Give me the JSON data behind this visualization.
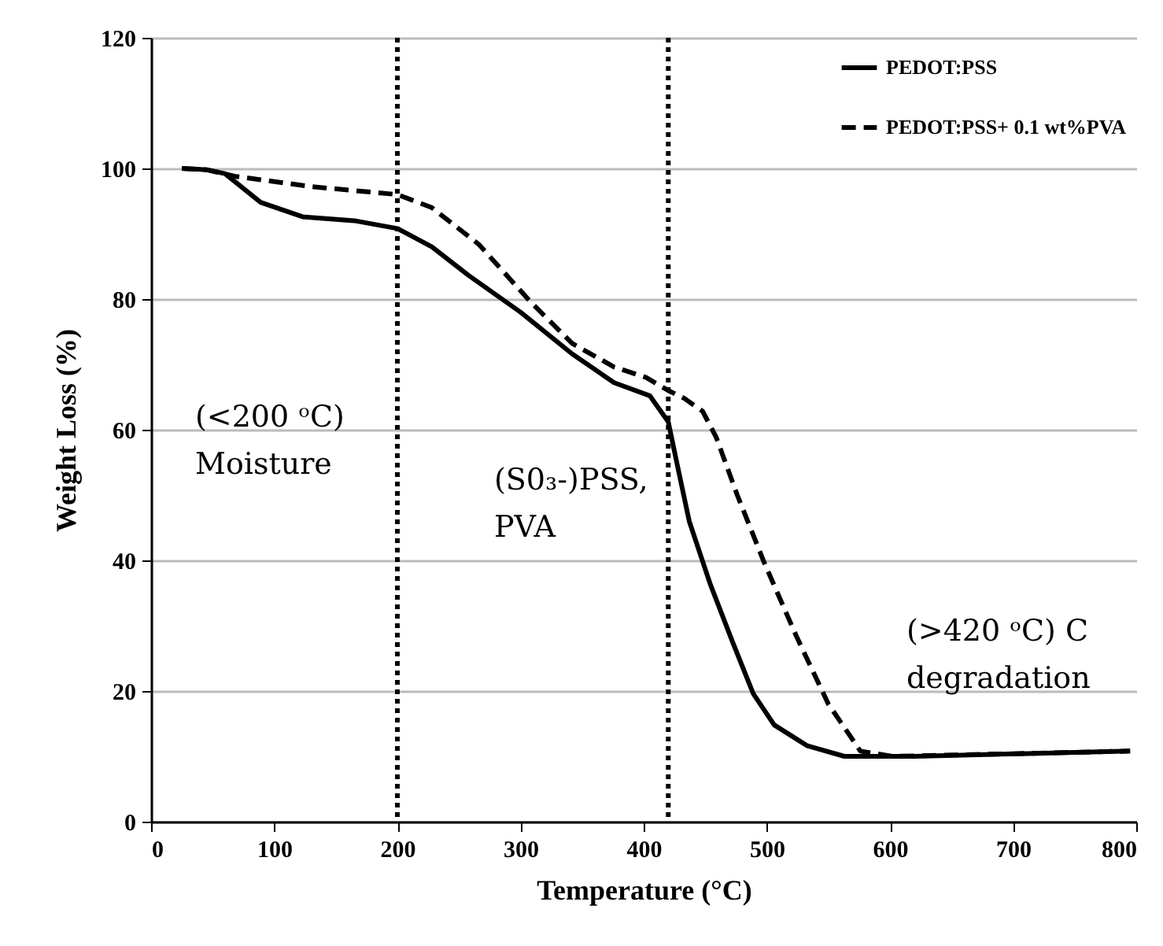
{
  "chart_data": {
    "type": "line",
    "xlabel": "Temperature (°C)",
    "ylabel": "Weight Loss (%)",
    "xlim": [
      0,
      800
    ],
    "xticks": [
      0,
      100,
      200,
      300,
      400,
      500,
      600,
      700,
      800
    ],
    "ylim": [
      0,
      120
    ],
    "yticks": [
      0,
      20,
      40,
      60,
      80,
      100,
      120
    ],
    "grid": "y",
    "legend": "top right",
    "marker": "none",
    "series": [
      {
        "name": "PEDOT:PSS",
        "color": "#000000",
        "line_style": "solid",
        "x": [
          25,
          45,
          60,
          89,
          123,
          165,
          200,
          228,
          258,
          300,
          342,
          376,
          405,
          420,
          428,
          437,
          454,
          472,
          489,
          506,
          533,
          563,
          620,
          706,
          795
        ],
        "values": [
          100,
          99.8,
          99.2,
          94.8,
          92.6,
          92,
          90.8,
          88,
          83.6,
          78,
          71.6,
          67.2,
          65.2,
          61.2,
          54,
          46,
          36.4,
          27.6,
          19.6,
          14.8,
          11.6,
          10,
          10,
          10.4,
          10.8
        ]
      },
      {
        "name": "PEDOT:PSS+ 0.1 wt%PVA",
        "color": "#000000",
        "line_style": "dashed",
        "x": [
          25,
          45,
          68,
          131,
          200,
          228,
          266,
          308,
          342,
          376,
          402,
          420,
          433,
          448,
          459,
          476,
          498,
          524,
          550,
          576,
          602,
          700,
          795
        ],
        "values": [
          100,
          99.8,
          98.8,
          97.2,
          96,
          94,
          88.4,
          79.6,
          73.2,
          69.6,
          68,
          66,
          64.8,
          62.8,
          58.8,
          50,
          39.6,
          28.4,
          18,
          10.8,
          10,
          10.4,
          10.8
        ]
      }
    ],
    "ref_lines": [
      {
        "axis": "x",
        "value": 200,
        "color": "#000000",
        "line_style": "dotted"
      },
      {
        "axis": "x",
        "value": 420,
        "color": "#000000",
        "line_style": "dotted"
      }
    ],
    "annotations": [
      "(<200 ᵒC)\nMoisture",
      "(S0₃-)PSS,\nPVA",
      "(>420 ᵒC) C\ndegradation"
    ]
  }
}
